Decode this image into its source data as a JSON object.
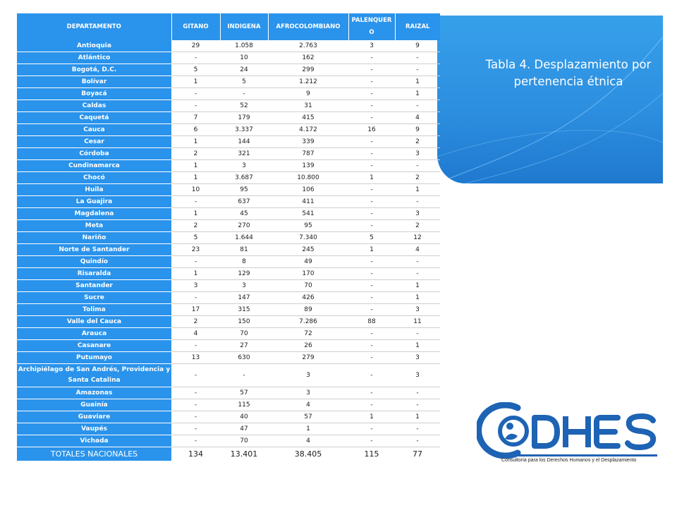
{
  "slide": {
    "title": "Tabla 4. Desplazamiento por pertenencia étnica"
  },
  "table": {
    "headers": [
      "DEPARTAMENTO",
      "GITANO",
      "INDIGENA",
      "AFROCOLOMBIANO",
      "PALENQUERO",
      "RAIZAL"
    ],
    "rows": [
      [
        "Antioquia",
        "29",
        "1.058",
        "2.763",
        "3",
        "9"
      ],
      [
        "Atlántico",
        "-",
        "10",
        "162",
        "-",
        "-"
      ],
      [
        "Bogotá, D.C.",
        "5",
        "24",
        "299",
        "-",
        "-"
      ],
      [
        "Bolívar",
        "1",
        "5",
        "1.212",
        "-",
        "1"
      ],
      [
        "Boyacá",
        "-",
        "-",
        "9",
        "-",
        "1"
      ],
      [
        "Caldas",
        "-",
        "52",
        "31",
        "-",
        "-"
      ],
      [
        "Caquetá",
        "7",
        "179",
        "415",
        "-",
        "4"
      ],
      [
        "Cauca",
        "6",
        "3.337",
        "4.172",
        "16",
        "9"
      ],
      [
        "Cesar",
        "1",
        "144",
        "339",
        "-",
        "2"
      ],
      [
        "Córdoba",
        "2",
        "321",
        "787",
        "-",
        "3"
      ],
      [
        "Cundinamarca",
        "1",
        "3",
        "139",
        "-",
        "-"
      ],
      [
        "Chocó",
        "1",
        "3.687",
        "10.800",
        "1",
        "2"
      ],
      [
        "Huila",
        "10",
        "95",
        "106",
        "-",
        "1"
      ],
      [
        "La Guajira",
        "-",
        "637",
        "411",
        "-",
        "-"
      ],
      [
        "Magdalena",
        "1",
        "45",
        "541",
        "-",
        "3"
      ],
      [
        "Meta",
        "2",
        "270",
        "95",
        "-",
        "2"
      ],
      [
        "Nariño",
        "5",
        "1.644",
        "7.340",
        "5",
        "12"
      ],
      [
        "Norte de Santander",
        "23",
        "81",
        "245",
        "1",
        "4"
      ],
      [
        "Quindío",
        "-",
        "8",
        "49",
        "-",
        "-"
      ],
      [
        "Risaralda",
        "1",
        "129",
        "170",
        "-",
        "-"
      ],
      [
        "Santander",
        "3",
        "3",
        "70",
        "-",
        "1"
      ],
      [
        "Sucre",
        "-",
        "147",
        "426",
        "-",
        "1"
      ],
      [
        "Tolima",
        "17",
        "315",
        "89",
        "-",
        "3"
      ],
      [
        "Valle del Cauca",
        "2",
        "150",
        "7.286",
        "88",
        "11"
      ],
      [
        "Arauca",
        "4",
        "70",
        "72",
        "-",
        "-"
      ],
      [
        "Casanare",
        "-",
        "27",
        "26",
        "-",
        "1"
      ],
      [
        "Putumayo",
        "13",
        "630",
        "279",
        "-",
        "3"
      ],
      [
        "Archipiélago de San Andrés, Providencia y Santa Catalina",
        "-",
        "-",
        "3",
        "-",
        "3"
      ],
      [
        "Amazonas",
        "-",
        "57",
        "3",
        "-",
        "-"
      ],
      [
        "Guainía",
        "-",
        "115",
        "4",
        "-",
        "-"
      ],
      [
        "Guaviare",
        "-",
        "40",
        "57",
        "1",
        "1"
      ],
      [
        "Vaupés",
        "-",
        "47",
        "1",
        "-",
        "-"
      ],
      [
        "Vichada",
        "-",
        "70",
        "4",
        "-",
        "-"
      ]
    ],
    "totals": [
      "TOTALES NACIONALES",
      "134",
      "13.401",
      "38.405",
      "115",
      "77"
    ]
  },
  "logo": {
    "name": "CODHES",
    "tagline": "Consultoría para los Derechos Humanos y el Desplazamiento"
  },
  "colors": {
    "header_bg": "#2a93eb",
    "panel_bg": "#2d8fe0",
    "logo_blue": "#1e63b4"
  }
}
